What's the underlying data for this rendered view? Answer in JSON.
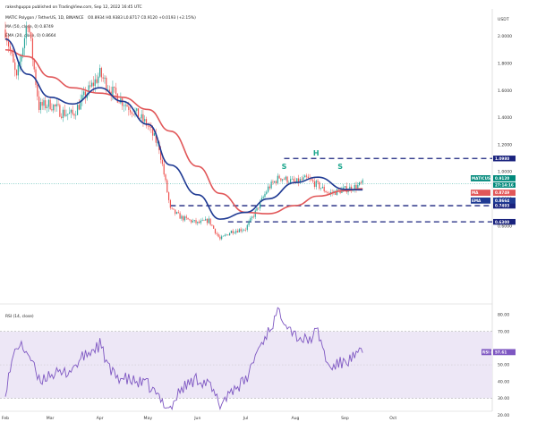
{
  "header": {
    "publisher_line": "rakeshguppa published on TradingView.com, Sep 12, 2022 16:45 UTC",
    "symbol_line": "MATIC Polygon / TetherUS, 1D, BINANCE",
    "ohlc": "O0.8934  H0.9383  L0.8717  C0.9120  +0.0193 (+2.15%)",
    "sma_line": "MA (50, close, 0)  0.8749",
    "ema_line": "EMA (20, close, 0)  0.8664",
    "currency": "USDT"
  },
  "colors": {
    "background": "#ffffff",
    "up_candle": "#26a69a",
    "down_candle": "#ef5350",
    "sma50": "#e15759",
    "ema20": "#1f3a93",
    "rsi_line": "#7e57c2",
    "rsi_band": "#ede7f6",
    "level_line": "#1a237e",
    "pattern_label": "#1aa68c",
    "price_tag": "#00897b"
  },
  "chart_data": [
    {
      "type": "candlestick",
      "title": "MATIC Polygon / TetherUS, 1D, BINANCE",
      "legend": "top-left",
      "ylim": [
        0.5,
        2.3
      ],
      "y_ticks": [
        "2.0000",
        "1.8000",
        "1.6000",
        "1.4000",
        "1.2000",
        "1.0000",
        "0.8000",
        "0.6000"
      ],
      "x_ticks": [
        "Feb",
        "Mar",
        "Apr",
        "May",
        "Jun",
        "Jul",
        "Aug",
        "Sep",
        "Oct"
      ],
      "series": [
        {
          "name": "MA (50, close, 0)",
          "values": [
            [
              "Feb 1",
              1.9
            ],
            [
              "Feb 15",
              1.85
            ],
            [
              "Mar 1",
              1.7
            ],
            [
              "Mar 15",
              1.62
            ],
            [
              "Apr 1",
              1.58
            ],
            [
              "Apr 15",
              1.55
            ],
            [
              "May 1",
              1.46
            ],
            [
              "May 15",
              1.3
            ],
            [
              "Jun 1",
              1.04
            ],
            [
              "Jun 15",
              0.84
            ],
            [
              "Jul 1",
              0.7
            ],
            [
              "Jul 15",
              0.69
            ],
            [
              "Aug 1",
              0.75
            ],
            [
              "Aug 15",
              0.82
            ],
            [
              "Sep 1",
              0.86
            ],
            [
              "Sep 12",
              0.8749
            ]
          ]
        },
        {
          "name": "EMA (20, close, 0)",
          "values": [
            [
              "Feb 1",
              1.98
            ],
            [
              "Feb 15",
              1.72
            ],
            [
              "Mar 1",
              1.55
            ],
            [
              "Mar 15",
              1.5
            ],
            [
              "Apr 1",
              1.62
            ],
            [
              "Apr 15",
              1.52
            ],
            [
              "May 1",
              1.35
            ],
            [
              "May 15",
              1.05
            ],
            [
              "Jun 1",
              0.83
            ],
            [
              "Jun 15",
              0.65
            ],
            [
              "Jul 1",
              0.7
            ],
            [
              "Jul 15",
              0.8
            ],
            [
              "Aug 1",
              0.92
            ],
            [
              "Aug 15",
              0.96
            ],
            [
              "Sep 1",
              0.87
            ],
            [
              "Sep 12",
              0.8664
            ]
          ]
        },
        {
          "name": "MATIC / TetherUS close",
          "values": [
            [
              "Feb 1",
              2.05
            ],
            [
              "Feb 8",
              1.68
            ],
            [
              "Feb 15",
              2.12
            ],
            [
              "Feb 22",
              1.48
            ],
            [
              "Mar 1",
              1.5
            ],
            [
              "Mar 8",
              1.44
            ],
            [
              "Mar 15",
              1.42
            ],
            [
              "Mar 22",
              1.55
            ],
            [
              "Apr 1",
              1.72
            ],
            [
              "Apr 8",
              1.6
            ],
            [
              "Apr 15",
              1.52
            ],
            [
              "Apr 22",
              1.45
            ],
            [
              "May 1",
              1.34
            ],
            [
              "May 8",
              1.18
            ],
            [
              "May 15",
              0.72
            ],
            [
              "May 22",
              0.66
            ],
            [
              "Jun 1",
              0.62
            ],
            [
              "Jun 8",
              0.64
            ],
            [
              "Jun 15",
              0.5
            ],
            [
              "Jun 22",
              0.56
            ],
            [
              "Jul 1",
              0.58
            ],
            [
              "Jul 8",
              0.72
            ],
            [
              "Jul 15",
              0.88
            ],
            [
              "Jul 22",
              0.96
            ],
            [
              "Aug 1",
              0.92
            ],
            [
              "Aug 8",
              0.95
            ],
            [
              "Aug 15",
              0.9
            ],
            [
              "Aug 22",
              0.84
            ],
            [
              "Sep 1",
              0.87
            ],
            [
              "Sep 8",
              0.89
            ],
            [
              "Sep 12",
              0.912
            ]
          ]
        }
      ],
      "levels": [
        {
          "name": "resistance",
          "value": 1.098,
          "label": "1.0980"
        },
        {
          "name": "neckline",
          "value": 0.7493,
          "label": "0.7493"
        },
        {
          "name": "support",
          "value": 0.63,
          "label": "0.6300"
        }
      ],
      "price_tags": [
        {
          "label": "MATICUSDT",
          "value": "0.9120",
          "extra": "27:14:16"
        },
        {
          "label": "MA",
          "value": "0.8749"
        },
        {
          "label": "EMA",
          "value": "0.8664"
        }
      ],
      "annotations": [
        {
          "text": "S",
          "x": "Jul 25",
          "y": 1.02
        },
        {
          "text": "H",
          "x": "Aug 14",
          "y": 1.12
        },
        {
          "text": "S",
          "x": "Aug 29",
          "y": 1.02
        }
      ]
    },
    {
      "type": "line",
      "title": "RSI (14, close)",
      "series": [
        {
          "name": "RSI (14, close)",
          "current": "57.61",
          "values": [
            [
              "Feb 1",
              35
            ],
            [
              "Feb 8",
              62
            ],
            [
              "Feb 15",
              58
            ],
            [
              "Feb 22",
              40
            ],
            [
              "Mar 1",
              45
            ],
            [
              "Mar 8",
              44
            ],
            [
              "Mar 15",
              48
            ],
            [
              "Mar 22",
              55
            ],
            [
              "Apr 1",
              62
            ],
            [
              "Apr 8",
              45
            ],
            [
              "Apr 15",
              42
            ],
            [
              "Apr 22",
              40
            ],
            [
              "May 1",
              38
            ],
            [
              "May 8",
              30
            ],
            [
              "May 15",
              24
            ],
            [
              "May 22",
              36
            ],
            [
              "Jun 1",
              42
            ],
            [
              "Jun 8",
              38
            ],
            [
              "Jun 15",
              26
            ],
            [
              "Jun 22",
              35
            ],
            [
              "Jul 1",
              40
            ],
            [
              "Jul 8",
              58
            ],
            [
              "Jul 15",
              70
            ],
            [
              "Jul 22",
              82
            ],
            [
              "Aug 1",
              68
            ],
            [
              "Aug 8",
              64
            ],
            [
              "Aug 15",
              70
            ],
            [
              "Aug 22",
              48
            ],
            [
              "Sep 1",
              52
            ],
            [
              "Sep 8",
              55
            ],
            [
              "Sep 12",
              57.61
            ]
          ]
        }
      ],
      "ylim": [
        20,
        90
      ],
      "y_ticks": [
        "80.00",
        "70.00",
        "50.00",
        "40.00",
        "30.00",
        "20.00"
      ],
      "band": [
        30,
        70
      ]
    }
  ]
}
